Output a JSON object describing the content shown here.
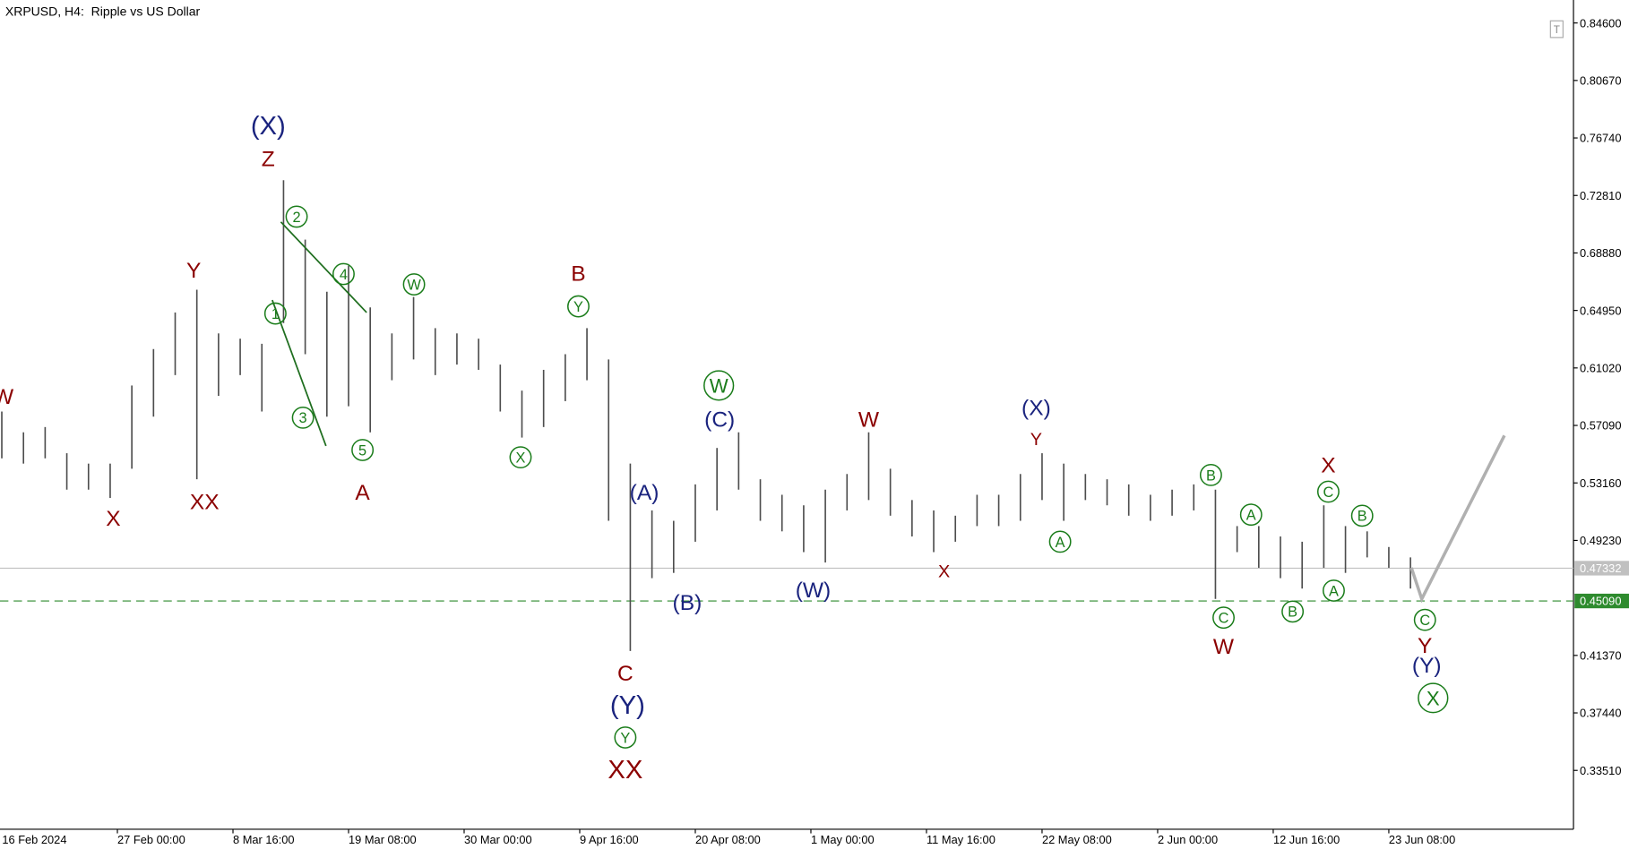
{
  "chart_data": {
    "type": "hilo",
    "title": "XRPUSD, H4:  Ripple vs US Dollar",
    "color": "#4d4d4d",
    "xlim": [
      4,
      3489
    ],
    "ylim": [
      0.2949,
      0.8617
    ],
    "xticks": [
      {
        "value": 0,
        "label": "16 Feb 2024"
      },
      {
        "value": 264,
        "label": "27 Feb 00:00"
      },
      {
        "value": 520,
        "label": "8 Mar 16:00"
      },
      {
        "value": 776,
        "label": "19 Mar 08:00"
      },
      {
        "value": 1032,
        "label": "30 Mar 00:00"
      },
      {
        "value": 1288,
        "label": "9 Apr 16:00"
      },
      {
        "value": 1544,
        "label": "20 Apr 08:00"
      },
      {
        "value": 1800,
        "label": "1 May 00:00"
      },
      {
        "value": 2056,
        "label": "11 May 16:00"
      },
      {
        "value": 2312,
        "label": "22 May 08:00"
      },
      {
        "value": 2568,
        "label": "2 Jun 00:00"
      },
      {
        "value": 2824,
        "label": "12 Jun 16:00"
      },
      {
        "value": 3080,
        "label": "23 Jun 08:00"
      }
    ],
    "yticks": [
      {
        "value": 0.846,
        "label": "0.84600"
      },
      {
        "value": 0.8067,
        "label": "0.80670"
      },
      {
        "value": 0.7674,
        "label": "0.76740"
      },
      {
        "value": 0.7281,
        "label": "0.72810"
      },
      {
        "value": 0.6888,
        "label": "0.68880"
      },
      {
        "value": 0.6495,
        "label": "0.64950"
      },
      {
        "value": 0.6102,
        "label": "0.61020"
      },
      {
        "value": 0.5709,
        "label": "0.57090"
      },
      {
        "value": 0.5316,
        "label": "0.53160"
      },
      {
        "value": 0.4923,
        "label": "0.49230"
      },
      {
        "value": 0.4137,
        "label": "0.41370"
      },
      {
        "value": 0.3744,
        "label": "0.37440"
      },
      {
        "value": 0.3351,
        "label": "0.33510"
      }
    ],
    "x": [
      8,
      56,
      104,
      152,
      200,
      248,
      296,
      344,
      392,
      440,
      488,
      536,
      584,
      632,
      680,
      728,
      776,
      824,
      872,
      920,
      968,
      1016,
      1064,
      1112,
      1160,
      1208,
      1256,
      1304,
      1352,
      1400,
      1448,
      1496,
      1544,
      1592,
      1640,
      1688,
      1736,
      1784,
      1832,
      1880,
      1928,
      1976,
      2024,
      2072,
      2120,
      2168,
      2216,
      2264,
      2312,
      2360,
      2408,
      2456,
      2504,
      2552,
      2600,
      2648,
      2696,
      2744,
      2792,
      2840,
      2888,
      2936,
      2984,
      3032,
      3080,
      3128
    ],
    "high": [
      0.5804,
      0.5662,
      0.5698,
      0.5519,
      0.5448,
      0.5448,
      0.5982,
      0.6231,
      0.6481,
      0.6637,
      0.6338,
      0.6302,
      0.6267,
      0.7385,
      0.6979,
      0.6623,
      0.6801,
      0.6516,
      0.6338,
      0.6587,
      0.6374,
      0.6338,
      0.6302,
      0.6125,
      0.5947,
      0.6089,
      0.6196,
      0.6374,
      0.616,
      0.5448,
      0.5128,
      0.5057,
      0.5306,
      0.5555,
      0.5662,
      0.5341,
      0.5235,
      0.5163,
      0.527,
      0.5377,
      0.5662,
      0.5413,
      0.5199,
      0.5128,
      0.5092,
      0.5235,
      0.5235,
      0.5377,
      0.5519,
      0.5448,
      0.5377,
      0.5341,
      0.5306,
      0.5235,
      0.527,
      0.5306,
      0.527,
      0.5021,
      0.5021,
      0.495,
      0.4914,
      0.5163,
      0.5021,
      0.4985,
      0.4878,
      0.4807
    ],
    "low": [
      0.5484,
      0.5448,
      0.5484,
      0.527,
      0.527,
      0.5213,
      0.5413,
      0.5769,
      0.6053,
      0.5341,
      0.5911,
      0.6053,
      0.5804,
      0.6409,
      0.6196,
      0.5769,
      0.584,
      0.5662,
      0.6018,
      0.616,
      0.6053,
      0.6125,
      0.6089,
      0.5804,
      0.5626,
      0.5698,
      0.5875,
      0.6018,
      0.5057,
      0.4167,
      0.4665,
      0.4701,
      0.4914,
      0.5128,
      0.527,
      0.5057,
      0.4985,
      0.4843,
      0.4772,
      0.5128,
      0.5199,
      0.5092,
      0.495,
      0.4843,
      0.4914,
      0.5021,
      0.5021,
      0.5057,
      0.5199,
      0.5057,
      0.5199,
      0.5163,
      0.5092,
      0.5057,
      0.5092,
      0.5128,
      0.4523,
      0.4843,
      0.4736,
      0.4665,
      0.4594,
      0.4736,
      0.4701,
      0.4807,
      0.4736,
      0.4594
    ],
    "price_lines": [
      {
        "value": 0.47332,
        "label": "0.47332",
        "color": "#c0c0c0",
        "style": "solid"
      },
      {
        "value": 0.4509,
        "label": "0.45090",
        "color": "#2e8b2e",
        "style": "dashed"
      }
    ],
    "trendlines": [
      {
        "color": "#1f6e1f",
        "x": [
          626,
          816
        ],
        "y": [
          0.71,
          0.6481
        ]
      },
      {
        "color": "#1f6e1f",
        "x": [
          607,
          726
        ],
        "y": [
          0.6566,
          0.5569
        ]
      }
    ],
    "projection": {
      "color": "#b0b0b0",
      "x": [
        3130,
        3153,
        3336
      ],
      "y": [
        0.4736,
        0.4523,
        0.564
      ]
    },
    "labels": [
      {
        "text": "W",
        "color": "#8b0000",
        "style": "plain",
        "size": "normal",
        "x": 11,
        "y": 0.5911
      },
      {
        "text": "X",
        "color": "#8b0000",
        "style": "plain",
        "size": "normal",
        "x": 255,
        "y": 0.5078
      },
      {
        "text": "Y",
        "color": "#8b0000",
        "style": "plain",
        "size": "normal",
        "x": 433,
        "y": 0.6773
      },
      {
        "text": "XX",
        "color": "#8b0000",
        "style": "plain",
        "size": "normal",
        "x": 457,
        "y": 0.5192
      },
      {
        "text": "(X)",
        "color": "#1a237e",
        "style": "plain",
        "size": "large",
        "x": 598,
        "y": 0.7762
      },
      {
        "text": "Z",
        "color": "#8b0000",
        "style": "plain",
        "size": "normal",
        "x": 598,
        "y": 0.7534
      },
      {
        "text": "2",
        "color": "#1b7d1b",
        "style": "circled",
        "size": "normal",
        "x": 661,
        "y": 0.7136
      },
      {
        "text": "1",
        "color": "#1b7d1b",
        "style": "circled",
        "size": "normal",
        "x": 614,
        "y": 0.6474
      },
      {
        "text": "3",
        "color": "#1b7d1b",
        "style": "circled",
        "size": "normal",
        "x": 675,
        "y": 0.5762
      },
      {
        "text": "4",
        "color": "#1b7d1b",
        "style": "circled",
        "size": "normal",
        "x": 765,
        "y": 0.6744
      },
      {
        "text": "5",
        "color": "#1b7d1b",
        "style": "circled",
        "size": "normal",
        "x": 807,
        "y": 0.5541
      },
      {
        "text": "A",
        "color": "#8b0000",
        "style": "plain",
        "size": "normal",
        "x": 807,
        "y": 0.5256
      },
      {
        "text": "W",
        "color": "#1b7d1b",
        "style": "circled",
        "size": "normal",
        "x": 921,
        "y": 0.6673
      },
      {
        "text": "X",
        "color": "#1b7d1b",
        "style": "circled",
        "size": "normal",
        "x": 1157,
        "y": 0.5491
      },
      {
        "text": "B",
        "color": "#8b0000",
        "style": "plain",
        "size": "normal",
        "x": 1285,
        "y": 0.6751
      },
      {
        "text": "Y",
        "color": "#1b7d1b",
        "style": "circled",
        "size": "normal",
        "x": 1285,
        "y": 0.6523
      },
      {
        "text": "C",
        "color": "#8b0000",
        "style": "plain",
        "size": "normal",
        "x": 1389,
        "y": 0.4017
      },
      {
        "text": "(Y)",
        "color": "#1a237e",
        "style": "plain",
        "size": "large",
        "x": 1394,
        "y": 0.3803
      },
      {
        "text": "Y",
        "color": "#1b7d1b",
        "style": "circled",
        "size": "normal",
        "x": 1389,
        "y": 0.3576
      },
      {
        "text": "XX",
        "color": "#8b0000",
        "style": "plain",
        "size": "large",
        "x": 1389,
        "y": 0.3362
      },
      {
        "text": "(A)",
        "color": "#1a237e",
        "style": "plain",
        "size": "normal",
        "x": 1431,
        "y": 0.5256
      },
      {
        "text": "(B)",
        "color": "#1a237e",
        "style": "plain",
        "size": "normal",
        "x": 1526,
        "y": 0.4501
      },
      {
        "text": "W",
        "color": "#1b7d1b",
        "style": "circled",
        "size": "large",
        "x": 1596,
        "y": 0.5982
      },
      {
        "text": "(C)",
        "color": "#1a237e",
        "style": "plain",
        "size": "normal",
        "x": 1598,
        "y": 0.5754
      },
      {
        "text": "W",
        "color": "#8b0000",
        "style": "plain",
        "size": "normal",
        "x": 1928,
        "y": 0.5754
      },
      {
        "text": "(W)",
        "color": "#1a237e",
        "style": "plain",
        "size": "normal",
        "x": 1805,
        "y": 0.4587
      },
      {
        "text": "X",
        "color": "#8b0000",
        "style": "plain",
        "size": "small",
        "x": 2095,
        "y": 0.4715
      },
      {
        "text": "(X)",
        "color": "#1a237e",
        "style": "plain",
        "size": "normal",
        "x": 2299,
        "y": 0.5833
      },
      {
        "text": "Y",
        "color": "#8b0000",
        "style": "plain",
        "size": "small",
        "x": 2299,
        "y": 0.5619
      },
      {
        "text": "A",
        "color": "#1b7d1b",
        "style": "circled",
        "size": "normal",
        "x": 2352,
        "y": 0.4914
      },
      {
        "text": "B",
        "color": "#1b7d1b",
        "style": "circled",
        "size": "normal",
        "x": 2686,
        "y": 0.537
      },
      {
        "text": "C",
        "color": "#1b7d1b",
        "style": "circled",
        "size": "normal",
        "x": 2714,
        "y": 0.4395
      },
      {
        "text": "W",
        "color": "#8b0000",
        "style": "plain",
        "size": "normal",
        "x": 2714,
        "y": 0.4202
      },
      {
        "text": "A",
        "color": "#1b7d1b",
        "style": "circled",
        "size": "normal",
        "x": 2775,
        "y": 0.5099
      },
      {
        "text": "B",
        "color": "#1b7d1b",
        "style": "circled",
        "size": "normal",
        "x": 2867,
        "y": 0.4437
      },
      {
        "text": "X",
        "color": "#8b0000",
        "style": "plain",
        "size": "normal",
        "x": 2946,
        "y": 0.5441
      },
      {
        "text": "C",
        "color": "#1b7d1b",
        "style": "circled",
        "size": "normal",
        "x": 2946,
        "y": 0.5256
      },
      {
        "text": "A",
        "color": "#1b7d1b",
        "style": "circled",
        "size": "normal",
        "x": 2958,
        "y": 0.458
      },
      {
        "text": "B",
        "color": "#1b7d1b",
        "style": "circled",
        "size": "normal",
        "x": 3021,
        "y": 0.5092
      },
      {
        "text": "C",
        "color": "#1b7d1b",
        "style": "circled",
        "size": "normal",
        "x": 3160,
        "y": 0.438
      },
      {
        "text": "Y",
        "color": "#8b0000",
        "style": "plain",
        "size": "normal",
        "x": 3160,
        "y": 0.4209
      },
      {
        "text": "(Y)",
        "color": "#1a237e",
        "style": "plain",
        "size": "normal",
        "x": 3164,
        "y": 0.4074
      },
      {
        "text": "X",
        "color": "#1b7d1b",
        "style": "circled",
        "size": "large",
        "x": 3178,
        "y": 0.3846
      }
    ]
  }
}
